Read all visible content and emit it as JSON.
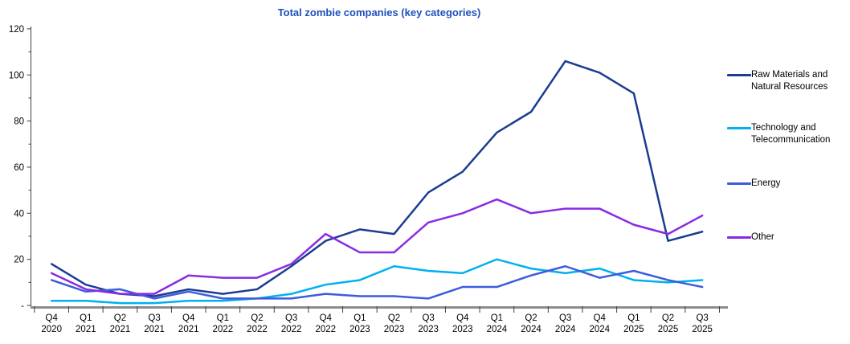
{
  "title": "Total zombie companies (key categories)",
  "title_color": "#1E51BC",
  "axis": {
    "line_color": "#404040",
    "baseline_color": "#8C8C8C",
    "tick_label_color": "#000000"
  },
  "chart_data": {
    "type": "line",
    "title": "Total zombie companies (key categories)",
    "categories": [
      "Q4 2020",
      "Q1 2021",
      "Q2 2021",
      "Q3 2021",
      "Q4 2021",
      "Q1 2022",
      "Q2 2022",
      "Q3 2022",
      "Q4 2022",
      "Q1 2023",
      "Q2 2023",
      "Q3 2023",
      "Q4 2023",
      "Q1 2024",
      "Q2 2024",
      "Q3 2024",
      "Q4 2024",
      "Q1 2025",
      "Q2 2025",
      "Q3 2025"
    ],
    "series": [
      {
        "name": "Raw Materials and Natural Resources",
        "color": "#1B3C92",
        "values": [
          18,
          9,
          5,
          4,
          7,
          5,
          7,
          17,
          28,
          33,
          31,
          49,
          58,
          75,
          84,
          106,
          101,
          92,
          28,
          32
        ]
      },
      {
        "name": "Technology and Telecommunication",
        "color": "#00B0F0",
        "values": [
          2,
          2,
          1,
          1,
          2,
          2,
          3,
          5,
          9,
          11,
          17,
          15,
          14,
          20,
          16,
          14,
          16,
          11,
          10,
          11
        ]
      },
      {
        "name": "Energy",
        "color": "#3D5CDB",
        "values": [
          11,
          6,
          7,
          3,
          6,
          3,
          3,
          3,
          5,
          4,
          4,
          3,
          8,
          8,
          13,
          17,
          12,
          15,
          11,
          8
        ]
      },
      {
        "name": "Other",
        "color": "#8A2BE2",
        "values": [
          14,
          7,
          5,
          5,
          13,
          12,
          12,
          18,
          31,
          23,
          23,
          36,
          40,
          46,
          40,
          42,
          42,
          35,
          31,
          39
        ]
      }
    ],
    "ylim": [
      0,
      120
    ],
    "y_ticks": [
      0,
      20,
      40,
      60,
      80,
      100,
      120
    ],
    "y_tick_labels": [
      "-",
      "20",
      "40",
      "60",
      "80",
      "100",
      "120"
    ],
    "y_minor_ticks": [
      10,
      30,
      50,
      70,
      90,
      110
    ],
    "xlabel": "",
    "ylabel": "",
    "grid": false,
    "legend_position": "right"
  }
}
